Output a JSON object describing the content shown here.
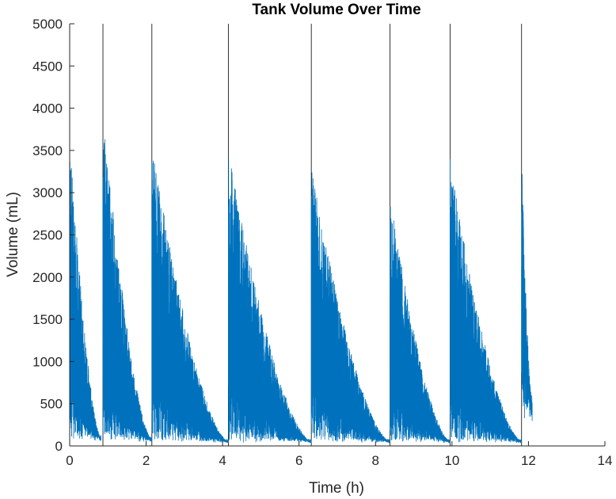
{
  "chart_data": {
    "type": "line",
    "title": "Tank Volume Over Time",
    "xlabel": "Time (h)",
    "ylabel": "Volume (mL)",
    "xlim": [
      0,
      14
    ],
    "ylim": [
      0,
      5000
    ],
    "x_ticks": [
      0,
      2,
      4,
      6,
      8,
      10,
      12,
      14
    ],
    "y_ticks": [
      0,
      500,
      1000,
      1500,
      2000,
      2500,
      3000,
      3500,
      4000,
      4500,
      5000
    ],
    "grid": false,
    "legend": "none",
    "series": [
      {
        "color": "#0072BD",
        "segments": [
          {
            "start": 0.0,
            "end": 0.82,
            "peak": 3700,
            "trough": 100
          },
          {
            "start": 0.87,
            "end": 2.15,
            "peak": 4000,
            "trough": 80
          },
          {
            "start": 2.15,
            "end": 4.15,
            "peak": 3600,
            "trough": 60
          },
          {
            "start": 4.15,
            "end": 6.32,
            "peak": 3500,
            "trough": 60
          },
          {
            "start": 6.32,
            "end": 8.38,
            "peak": 3300,
            "trough": 60
          },
          {
            "start": 8.38,
            "end": 9.95,
            "peak": 3000,
            "trough": 60
          },
          {
            "start": 9.95,
            "end": 11.82,
            "peak": 3400,
            "trough": 60
          },
          {
            "start": 11.82,
            "end": 12.1,
            "peak": 3500,
            "trough": 500
          }
        ]
      }
    ],
    "refill_times": [
      0.87,
      2.15,
      4.15,
      6.32,
      8.38,
      9.95,
      11.82
    ],
    "refill_volume": 5000,
    "reference_line_color": "#000000"
  }
}
